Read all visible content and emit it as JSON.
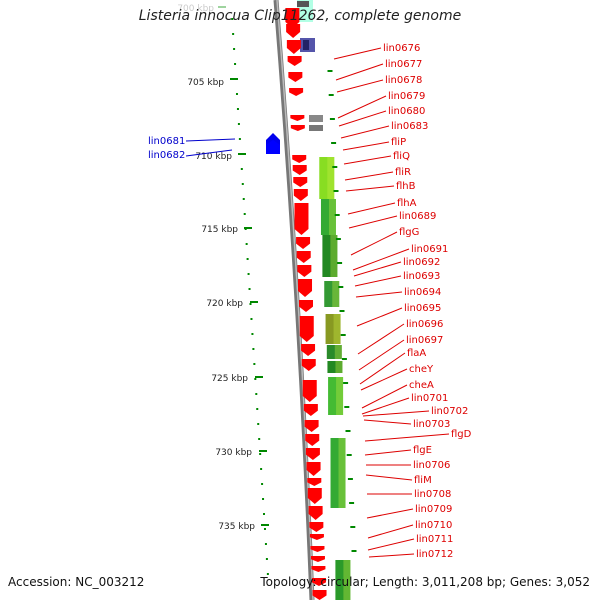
{
  "title": "Listeria innocua Clip11262, complete genome",
  "footer": {
    "accession": "Accession: NC_003212",
    "summary": "Topology: circular; Length: 3,011,208 bp; Genes: 3,052"
  },
  "colors": {
    "forward_gene": "#0000ff",
    "reverse_gene": "#ff0000",
    "label_forward": "#0000cc",
    "label_reverse": "#dd0000",
    "tick": "#008800",
    "backbone": "#888888"
  },
  "ruler_ticks": [
    {
      "label": "700 kbp",
      "faded": true
    },
    {
      "label": "705 kbp"
    },
    {
      "label": "710 kbp"
    },
    {
      "label": "715 kbp"
    },
    {
      "label": "720 kbp"
    },
    {
      "label": "725 kbp"
    },
    {
      "label": "730 kbp"
    },
    {
      "label": "735 kbp"
    }
  ],
  "left_labels": [
    "lin0681",
    "lin0682"
  ],
  "right_labels": [
    "lin0676",
    "lin0677",
    "lin0678",
    "lin0679",
    "lin0680",
    "lin0683",
    "fliP",
    "fliQ",
    "fliR",
    "flhB",
    "flhA",
    "lin0689",
    "flgG",
    "lin0691",
    "lin0692",
    "lin0693",
    "lin0694",
    "lin0695",
    "lin0696",
    "lin0697",
    "flaA",
    "cheY",
    "cheA",
    "lin0701",
    "lin0702",
    "lin0703",
    "flgD",
    "flgE",
    "lin0706",
    "fliM",
    "lin0708",
    "lin0709",
    "lin0710",
    "lin0711",
    "lin0712"
  ]
}
